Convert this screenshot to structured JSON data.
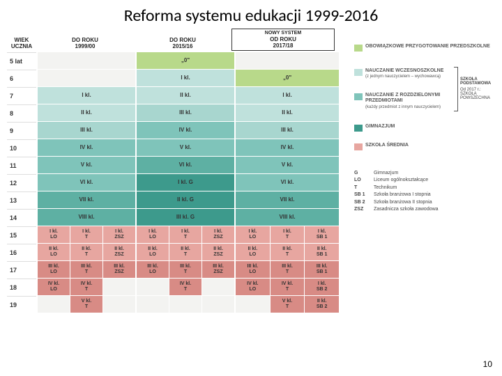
{
  "title": "Reforma systemu edukacji 1999-2016",
  "page_number": "10",
  "colors": {
    "prep": "#b8d98a",
    "early": "#bfe1dc",
    "earlyD": "#a8d6cf",
    "subj": "#7fc4ba",
    "subjD": "#5eb0a3",
    "gimn": "#3d9a8c",
    "sred": "#e7a6a0",
    "sredD": "#d88b85",
    "blank": "#f3f3f1",
    "hdrbg": "#ffffff"
  },
  "header": {
    "age": "WIEK\nUCZNIA",
    "c1": "DO ROKU\n1999/00",
    "c2": "DO ROKU\n2015/16",
    "new_top": "NOWY SYSTEM",
    "c3": "OD ROKU\n2017/18"
  },
  "ages": [
    "5 lat",
    "6",
    "7",
    "8",
    "9",
    "10",
    "11",
    "12",
    "13",
    "14",
    "15",
    "16",
    "17",
    "18",
    "19"
  ],
  "cells": {
    "c1": [
      {
        "t": "",
        "k": "blank"
      },
      {
        "t": "",
        "k": "blank"
      },
      {
        "t": "I kl.",
        "k": "early"
      },
      {
        "t": "II kl.",
        "k": "early"
      },
      {
        "t": "III kl.",
        "k": "earlyD"
      },
      {
        "t": "IV kl.",
        "k": "subj"
      },
      {
        "t": "V kl.",
        "k": "subj"
      },
      {
        "t": "VI kl.",
        "k": "subj"
      },
      {
        "t": "VII kl.",
        "k": "subjD"
      },
      {
        "t": "VIII kl.",
        "k": "subjD"
      },
      {
        "split": [
          [
            "I kl.",
            "LO"
          ],
          [
            "I kl.",
            "T"
          ],
          [
            "I kl.",
            "ZSZ"
          ]
        ],
        "k": "sred"
      },
      {
        "split": [
          [
            "II kl.",
            "LO"
          ],
          [
            "II kl.",
            "T"
          ],
          [
            "II kl.",
            "ZSZ"
          ]
        ],
        "k": "sred"
      },
      {
        "split": [
          [
            "III kl.",
            "LO"
          ],
          [
            "III kl.",
            "T"
          ],
          [
            "III kl.",
            "ZSZ"
          ]
        ],
        "k": "sredD"
      },
      {
        "split": [
          [
            "IV kl.",
            "LO"
          ],
          [
            "IV kl.",
            "T"
          ],
          [
            ""
          ]
        ],
        "k": "sredD"
      },
      {
        "split": [
          [
            ""
          ],
          [
            "V kl.",
            "T"
          ],
          [
            ""
          ]
        ],
        "k": "sredD"
      }
    ],
    "c2": [
      {
        "t": "„0\"",
        "k": "prep"
      },
      {
        "t": "I kl.",
        "k": "early"
      },
      {
        "t": "II kl.",
        "k": "early"
      },
      {
        "t": "III kl.",
        "k": "earlyD"
      },
      {
        "t": "IV kl.",
        "k": "subj"
      },
      {
        "t": "V kl.",
        "k": "subj"
      },
      {
        "t": "VI kl.",
        "k": "subjD"
      },
      {
        "t": "I kl. G",
        "k": "gimn"
      },
      {
        "t": "II kl. G",
        "k": "gimn"
      },
      {
        "t": "III kl. G",
        "k": "gimn"
      },
      {
        "split": [
          [
            "I kl.",
            "LO"
          ],
          [
            "I kl.",
            "T"
          ],
          [
            "I kl.",
            "ZSZ"
          ]
        ],
        "k": "sred"
      },
      {
        "split": [
          [
            "II kl.",
            "LO"
          ],
          [
            "II kl.",
            "T"
          ],
          [
            "II kl.",
            "ZSZ"
          ]
        ],
        "k": "sred"
      },
      {
        "split": [
          [
            "III kl.",
            "LO"
          ],
          [
            "III kl.",
            "T"
          ],
          [
            "III kl.",
            "ZSZ"
          ]
        ],
        "k": "sredD"
      },
      {
        "split": [
          [
            ""
          ],
          [
            "IV kl.",
            "T"
          ],
          [
            ""
          ]
        ],
        "k": "sredD"
      },
      {
        "split": [
          [
            ""
          ],
          [
            ""
          ],
          [
            ""
          ]
        ],
        "k": "blank"
      }
    ],
    "c3": [
      {
        "t": "",
        "k": "blank"
      },
      {
        "t": "„0\"",
        "k": "prep"
      },
      {
        "t": "I kl.",
        "k": "early"
      },
      {
        "t": "II kl.",
        "k": "early"
      },
      {
        "t": "III kl.",
        "k": "earlyD"
      },
      {
        "t": "IV kl.",
        "k": "subj"
      },
      {
        "t": "V kl.",
        "k": "subj"
      },
      {
        "t": "VI kl.",
        "k": "subj"
      },
      {
        "t": "VII kl.",
        "k": "subjD"
      },
      {
        "t": "VIII kl.",
        "k": "subjD"
      },
      {
        "split": [
          [
            "I kl.",
            "LO"
          ],
          [
            "I kl.",
            "T"
          ],
          [
            "I kl.",
            "SB 1"
          ]
        ],
        "k": "sred"
      },
      {
        "split": [
          [
            "II kl.",
            "LO"
          ],
          [
            "II kl.",
            "T"
          ],
          [
            "II kl.",
            "SB 1"
          ]
        ],
        "k": "sred"
      },
      {
        "split": [
          [
            "III kl.",
            "LO"
          ],
          [
            "III kl.",
            "T"
          ],
          [
            "III kl.",
            "SB 1"
          ]
        ],
        "k": "sredD"
      },
      {
        "split": [
          [
            "IV kl.",
            "LO"
          ],
          [
            "IV kl.",
            "T"
          ],
          [
            "I kl.",
            "SB 2"
          ]
        ],
        "k": "sredD"
      },
      {
        "split": [
          [
            ""
          ],
          [
            "V kl.",
            "T"
          ],
          [
            "II kl.",
            "SB 2"
          ]
        ],
        "k": "sredD"
      }
    ]
  },
  "legend": {
    "prep": {
      "label": "OBOWIĄZKOWE PRZYGOTOWANIE PRZEDSZKOLNE"
    },
    "early": {
      "label": "NAUCZANIE WCZESNOSZKOLNE",
      "sub": "(z jednym nauczycielem – wychowawcą)"
    },
    "subj": {
      "label": "NAUCZANIE Z ROZDZIELONYMI PRZEDMIOTAMI",
      "sub": "(każdy przedmiot z innym nauczycielem)"
    },
    "gimn": {
      "label": "GIMNAZJUM"
    },
    "sred": {
      "label": "SZKOŁA ŚREDNIA"
    },
    "bracket_label": "SZKOŁA PODSTAWOWA",
    "bracket_sub": "Od 2017 r.: SZKOŁA POWSZECHNA"
  },
  "abbrev": [
    [
      "G",
      "Gimnazjum"
    ],
    [
      "LO",
      "Liceum ogólnokształcące"
    ],
    [
      "T",
      "Technikum"
    ],
    [
      "SB 1",
      "Szkoła branżowa I stopnia"
    ],
    [
      "SB 2",
      "Szkoła branżowa II stopnia"
    ],
    [
      "ZSZ",
      "Zasadnicza szkoła zawodowa"
    ]
  ]
}
